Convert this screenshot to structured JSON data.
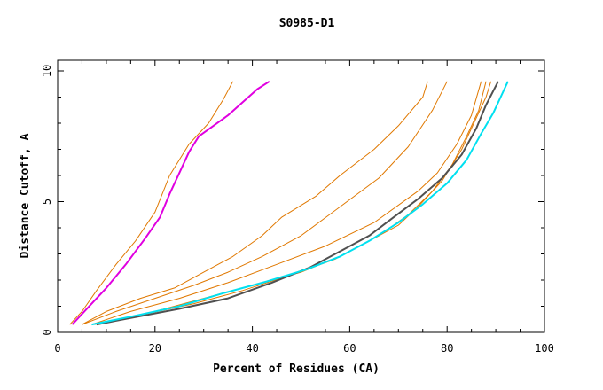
{
  "chart_data": {
    "type": "line",
    "title": "S0985-D1",
    "xlabel": "Percent of Residues (CA)",
    "ylabel": "Distance Cutoff, A",
    "xlim": [
      0,
      100
    ],
    "ylim": [
      0,
      10
    ],
    "x_ticks": [
      0,
      20,
      40,
      60,
      80,
      100
    ],
    "y_ticks": [
      0,
      5,
      10
    ],
    "colors": {
      "orange": "#e07800",
      "magenta": "#e000e0",
      "gray": "#505050",
      "cyan": "#00e0f0"
    },
    "series": [
      {
        "name": "orange-1",
        "color": "#e07800",
        "points": [
          [
            2.5,
            0.3
          ],
          [
            5,
            0.8
          ],
          [
            8,
            1.6
          ],
          [
            12,
            2.6
          ],
          [
            16,
            3.5
          ],
          [
            20,
            4.6
          ],
          [
            23,
            6
          ],
          [
            27,
            7.2
          ],
          [
            31,
            8
          ],
          [
            34,
            8.9
          ],
          [
            36,
            9.6
          ]
        ]
      },
      {
        "name": "orange-2",
        "color": "#e07800",
        "points": [
          [
            5,
            0.3
          ],
          [
            10,
            0.8
          ],
          [
            17,
            1.3
          ],
          [
            24,
            1.7
          ],
          [
            30,
            2.3
          ],
          [
            36,
            2.9
          ],
          [
            42,
            3.7
          ],
          [
            46,
            4.4
          ],
          [
            53,
            5.2
          ],
          [
            58,
            6
          ],
          [
            65,
            7
          ],
          [
            70,
            7.9
          ],
          [
            75,
            9
          ],
          [
            76,
            9.6
          ]
        ]
      },
      {
        "name": "orange-3",
        "color": "#e07800",
        "points": [
          [
            5,
            0.3
          ],
          [
            12,
            0.8
          ],
          [
            20,
            1.3
          ],
          [
            28,
            1.8
          ],
          [
            35,
            2.3
          ],
          [
            42,
            2.9
          ],
          [
            50,
            3.7
          ],
          [
            58,
            4.8
          ],
          [
            66,
            5.9
          ],
          [
            72,
            7.1
          ],
          [
            77,
            8.5
          ],
          [
            80,
            9.6
          ]
        ]
      },
      {
        "name": "orange-4",
        "color": "#e07800",
        "points": [
          [
            7,
            0.3
          ],
          [
            15,
            0.8
          ],
          [
            25,
            1.3
          ],
          [
            35,
            1.9
          ],
          [
            45,
            2.6
          ],
          [
            55,
            3.3
          ],
          [
            65,
            4.2
          ],
          [
            74,
            5.4
          ],
          [
            78,
            6.1
          ],
          [
            82,
            7.2
          ],
          [
            85,
            8.3
          ],
          [
            87,
            9.6
          ]
        ]
      },
      {
        "name": "orange-5",
        "color": "#e07800",
        "points": [
          [
            8,
            0.3
          ],
          [
            20,
            0.8
          ],
          [
            30,
            1.3
          ],
          [
            40,
            1.8
          ],
          [
            50,
            2.3
          ],
          [
            58,
            2.9
          ],
          [
            66,
            3.7
          ],
          [
            72,
            4.5
          ],
          [
            77,
            5.4
          ],
          [
            81,
            6.4
          ],
          [
            84,
            7.5
          ],
          [
            86.5,
            8.5
          ],
          [
            88,
            9.6
          ]
        ]
      },
      {
        "name": "orange-6",
        "color": "#e07800",
        "points": [
          [
            7.5,
            0.3
          ],
          [
            18,
            0.7
          ],
          [
            28,
            1.1
          ],
          [
            38,
            1.6
          ],
          [
            48,
            2.2
          ],
          [
            57,
            2.8
          ],
          [
            64,
            3.5
          ],
          [
            70,
            4.1
          ],
          [
            74,
            4.8
          ],
          [
            79,
            5.8
          ],
          [
            83,
            7
          ],
          [
            86,
            8.2
          ],
          [
            88,
            9
          ],
          [
            89,
            9.6
          ]
        ]
      },
      {
        "name": "magenta",
        "color": "#e000e0",
        "points": [
          [
            3,
            0.3
          ],
          [
            6,
            0.9
          ],
          [
            10,
            1.7
          ],
          [
            14,
            2.6
          ],
          [
            18,
            3.6
          ],
          [
            21,
            4.4
          ],
          [
            23,
            5.3
          ],
          [
            25,
            6.1
          ],
          [
            27,
            6.9
          ],
          [
            29,
            7.5
          ],
          [
            32,
            7.9
          ],
          [
            35,
            8.3
          ],
          [
            38,
            8.8
          ],
          [
            41,
            9.3
          ],
          [
            43.5,
            9.6
          ]
        ]
      },
      {
        "name": "gray",
        "color": "#505050",
        "points": [
          [
            8,
            0.3
          ],
          [
            15,
            0.55
          ],
          [
            25,
            0.9
          ],
          [
            35,
            1.3
          ],
          [
            44,
            1.9
          ],
          [
            52,
            2.5
          ],
          [
            58,
            3.1
          ],
          [
            64,
            3.7
          ],
          [
            69,
            4.4
          ],
          [
            74,
            5.1
          ],
          [
            79,
            5.9
          ],
          [
            83,
            6.8
          ],
          [
            86,
            7.8
          ],
          [
            88,
            8.7
          ],
          [
            90.5,
            9.6
          ]
        ]
      },
      {
        "name": "cyan",
        "color": "#00e0f0",
        "points": [
          [
            7,
            0.3
          ],
          [
            15,
            0.6
          ],
          [
            25,
            1.0
          ],
          [
            34,
            1.5
          ],
          [
            43,
            1.95
          ],
          [
            51,
            2.4
          ],
          [
            58,
            2.9
          ],
          [
            64,
            3.5
          ],
          [
            70,
            4.2
          ],
          [
            75,
            4.9
          ],
          [
            80,
            5.7
          ],
          [
            84,
            6.6
          ],
          [
            87,
            7.6
          ],
          [
            89.5,
            8.4
          ],
          [
            91,
            9
          ],
          [
            92.5,
            9.6
          ]
        ]
      }
    ]
  }
}
